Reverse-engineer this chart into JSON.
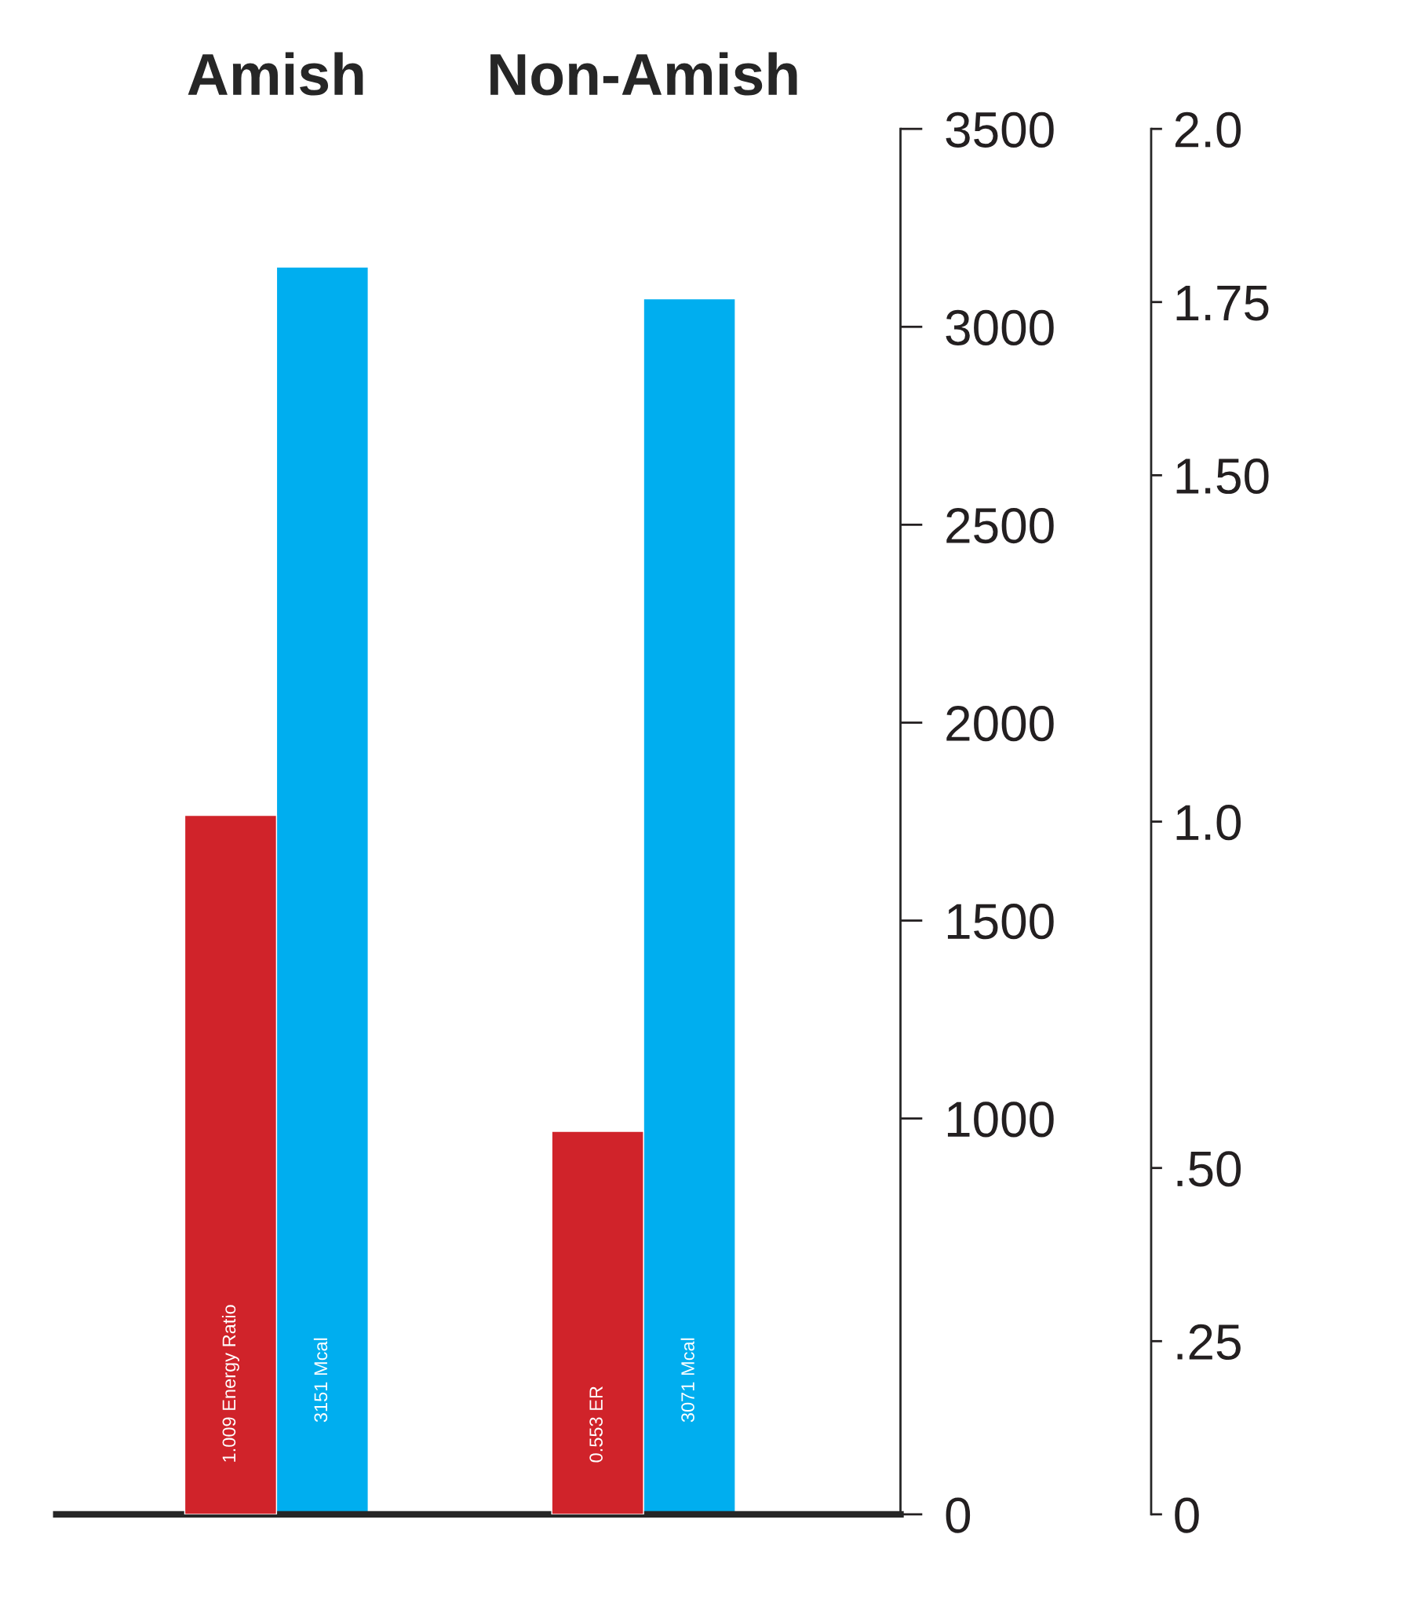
{
  "chart_data": {
    "type": "bar",
    "categories": [
      "Amish",
      "Non-Amish"
    ],
    "series": [
      {
        "color": "#d0232a",
        "values": [
          1.009,
          0.553
        ],
        "axis": "y2",
        "value_labels": [
          "1.009 Energy Ratio",
          "0.553 ER"
        ]
      },
      {
        "color": "#00aeef",
        "values": [
          3151,
          3071
        ],
        "value_labels": [
          "3151 Mcal",
          "3071 Mcal"
        ]
      }
    ],
    "ylim": [
      0,
      3500
    ],
    "yticks": [
      0,
      1000,
      1500,
      2000,
      2500,
      3000,
      3500
    ],
    "y2lim": [
      0,
      2.0
    ],
    "y2ticks": [
      0,
      {
        "value": 0.25,
        "label": ".25"
      },
      {
        "value": 0.5,
        "label": ".50"
      },
      {
        "value": 1.0,
        "label": "1.0"
      },
      {
        "value": 1.5,
        "label": "1.50"
      },
      {
        "value": 1.75,
        "label": "1.75"
      },
      {
        "value": 2.0,
        "label": "2.0"
      }
    ],
    "grid": false,
    "legend": false
  }
}
